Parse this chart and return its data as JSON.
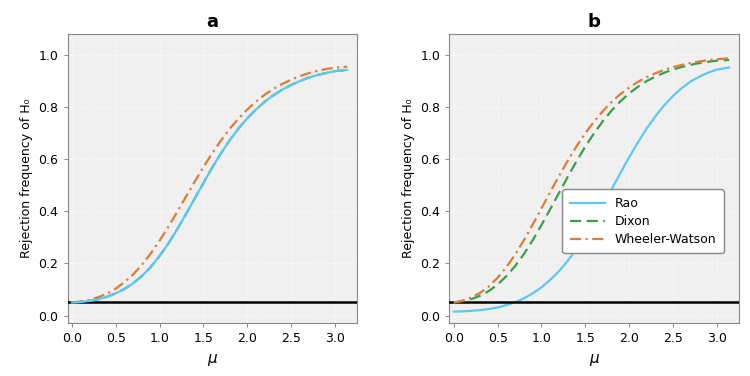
{
  "title_a": "a",
  "title_b": "b",
  "xlabel": "μ",
  "ylabel": "Rejection frequency of H₀",
  "xlim": [
    -0.05,
    3.25
  ],
  "ylim": [
    -0.03,
    1.08
  ],
  "xticks": [
    0.0,
    0.5,
    1.0,
    1.5,
    2.0,
    2.5,
    3.0
  ],
  "yticks": [
    0.0,
    0.2,
    0.4,
    0.6,
    0.8,
    1.0
  ],
  "hline_y": 0.05,
  "rao_color": "#5bc8f5",
  "dixon_color": "#3a9e4a",
  "ww_color": "#e07b39",
  "background_color": "#f0f0f0",
  "legend_labels": [
    "Rao",
    "Dixon",
    "Wheeler-Watson"
  ],
  "x_a": [
    0.0,
    0.1,
    0.2,
    0.3,
    0.4,
    0.5,
    0.6,
    0.7,
    0.8,
    0.9,
    1.0,
    1.1,
    1.2,
    1.3,
    1.4,
    1.5,
    1.6,
    1.7,
    1.8,
    1.9,
    2.0,
    2.1,
    2.2,
    2.3,
    2.4,
    2.5,
    2.6,
    2.7,
    2.8,
    2.9,
    3.0,
    3.14
  ],
  "a_rao": [
    0.05,
    0.052,
    0.056,
    0.062,
    0.072,
    0.085,
    0.102,
    0.124,
    0.152,
    0.186,
    0.228,
    0.276,
    0.33,
    0.388,
    0.448,
    0.508,
    0.567,
    0.622,
    0.672,
    0.717,
    0.756,
    0.79,
    0.82,
    0.845,
    0.866,
    0.884,
    0.899,
    0.912,
    0.922,
    0.93,
    0.937,
    0.942
  ],
  "a_dixon": [
    0.05,
    0.052,
    0.056,
    0.062,
    0.072,
    0.085,
    0.102,
    0.124,
    0.152,
    0.186,
    0.228,
    0.276,
    0.33,
    0.388,
    0.448,
    0.508,
    0.567,
    0.622,
    0.672,
    0.717,
    0.756,
    0.79,
    0.82,
    0.845,
    0.866,
    0.884,
    0.899,
    0.912,
    0.922,
    0.93,
    0.937,
    0.942
  ],
  "a_ww": [
    0.05,
    0.054,
    0.06,
    0.07,
    0.084,
    0.103,
    0.128,
    0.158,
    0.195,
    0.238,
    0.287,
    0.34,
    0.397,
    0.455,
    0.513,
    0.569,
    0.622,
    0.671,
    0.716,
    0.755,
    0.79,
    0.82,
    0.847,
    0.869,
    0.888,
    0.904,
    0.918,
    0.929,
    0.938,
    0.945,
    0.95,
    0.954
  ],
  "x_b": [
    0.0,
    0.1,
    0.2,
    0.3,
    0.4,
    0.5,
    0.6,
    0.7,
    0.8,
    0.9,
    1.0,
    1.1,
    1.2,
    1.3,
    1.4,
    1.5,
    1.6,
    1.7,
    1.8,
    1.9,
    2.0,
    2.1,
    2.2,
    2.3,
    2.4,
    2.5,
    2.6,
    2.7,
    2.8,
    2.9,
    3.0,
    3.14
  ],
  "b_rao": [
    0.015,
    0.016,
    0.018,
    0.021,
    0.025,
    0.031,
    0.04,
    0.051,
    0.066,
    0.085,
    0.108,
    0.137,
    0.17,
    0.21,
    0.256,
    0.307,
    0.363,
    0.422,
    0.484,
    0.546,
    0.607,
    0.664,
    0.717,
    0.764,
    0.806,
    0.842,
    0.872,
    0.897,
    0.916,
    0.931,
    0.943,
    0.951
  ],
  "b_dixon": [
    0.05,
    0.055,
    0.063,
    0.076,
    0.094,
    0.119,
    0.151,
    0.19,
    0.236,
    0.289,
    0.347,
    0.408,
    0.47,
    0.532,
    0.592,
    0.648,
    0.699,
    0.745,
    0.786,
    0.821,
    0.852,
    0.877,
    0.899,
    0.916,
    0.931,
    0.943,
    0.953,
    0.961,
    0.968,
    0.973,
    0.977,
    0.98
  ],
  "b_ww": [
    0.05,
    0.057,
    0.069,
    0.087,
    0.112,
    0.145,
    0.186,
    0.234,
    0.289,
    0.349,
    0.411,
    0.474,
    0.535,
    0.594,
    0.649,
    0.699,
    0.744,
    0.784,
    0.819,
    0.849,
    0.874,
    0.896,
    0.914,
    0.929,
    0.942,
    0.952,
    0.961,
    0.968,
    0.974,
    0.979,
    0.983,
    0.986
  ]
}
